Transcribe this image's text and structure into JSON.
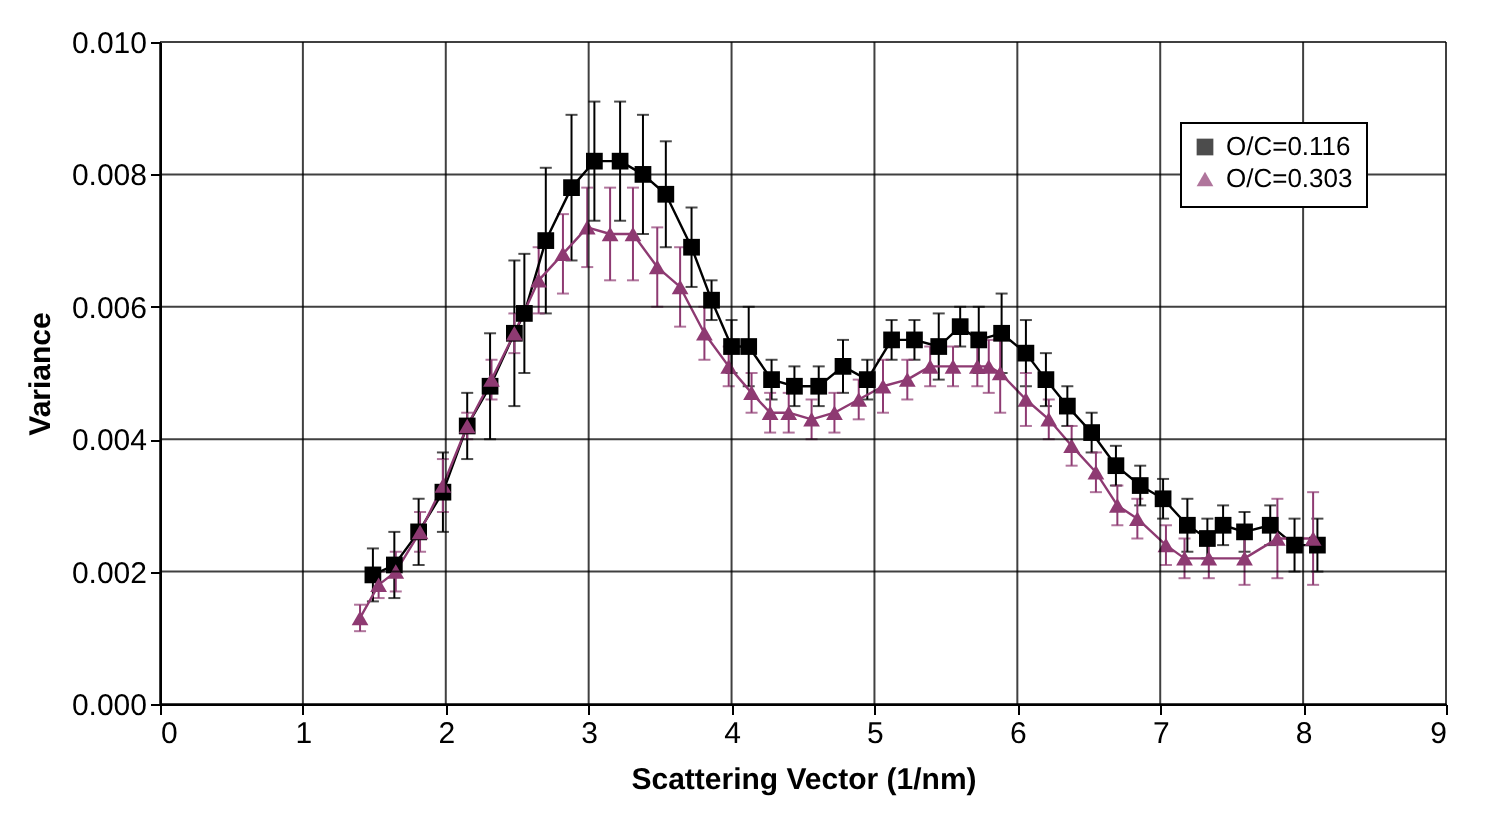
{
  "chart_data": {
    "type": "line",
    "xlabel": "Scattering Vector (1/nm)",
    "ylabel": "Variance",
    "xlim": [
      0,
      9
    ],
    "xticks": [
      0,
      1,
      2,
      3,
      4,
      5,
      6,
      7,
      8,
      9
    ],
    "ylim": [
      0,
      0.01
    ],
    "yticks": [
      {
        "value": 0,
        "label": "0.000"
      },
      {
        "value": 0.002,
        "label": "0.002"
      },
      {
        "value": 0.004,
        "label": "0.004"
      },
      {
        "value": 0.006,
        "label": "0.006"
      },
      {
        "value": 0.008,
        "label": "0.008"
      },
      {
        "value": 0.01,
        "label": "0.010"
      }
    ],
    "grid": true,
    "legend": "top right",
    "line_style": "solid",
    "series": [
      {
        "name": "O/C=0.116",
        "marker": "square",
        "color": "#000000",
        "x": [
          1.49,
          1.64,
          1.81,
          1.98,
          2.15,
          2.31,
          2.48,
          2.55,
          2.7,
          2.88,
          3.04,
          3.22,
          3.38,
          3.54,
          3.72,
          3.86,
          4.0,
          4.12,
          4.28,
          4.44,
          4.61,
          4.78,
          4.95,
          5.12,
          5.28,
          5.45,
          5.6,
          5.73,
          5.89,
          6.06,
          6.2,
          6.35,
          6.52,
          6.69,
          6.86,
          7.02,
          7.19,
          7.33,
          7.44,
          7.59,
          7.77,
          7.94,
          8.1
        ],
        "values": [
          0.00195,
          0.0021,
          0.0026,
          0.0032,
          0.0042,
          0.0048,
          0.0056,
          0.0059,
          0.007,
          0.0078,
          0.0082,
          0.0082,
          0.008,
          0.0077,
          0.0069,
          0.0061,
          0.0054,
          0.0054,
          0.0049,
          0.0048,
          0.0048,
          0.0051,
          0.0049,
          0.0055,
          0.0055,
          0.0054,
          0.0057,
          0.0055,
          0.0056,
          0.0053,
          0.0049,
          0.0045,
          0.0041,
          0.0036,
          0.0033,
          0.0031,
          0.0027,
          0.0025,
          0.0027,
          0.0026,
          0.0027,
          0.0024,
          0.0024
        ],
        "errors": [
          0.0004,
          0.0005,
          0.0005,
          0.0006,
          0.0005,
          0.0008,
          0.0011,
          0.0009,
          0.0011,
          0.0011,
          0.0009,
          0.0009,
          0.0009,
          0.0008,
          0.0006,
          0.0003,
          0.0004,
          0.0006,
          0.0003,
          0.0003,
          0.0003,
          0.0004,
          0.0003,
          0.0003,
          0.0003,
          0.0005,
          0.0003,
          0.0005,
          0.0006,
          0.0005,
          0.0004,
          0.0003,
          0.0003,
          0.0003,
          0.0003,
          0.0003,
          0.0004,
          0.0003,
          0.0003,
          0.0003,
          0.0003,
          0.0004,
          0.0004
        ]
      },
      {
        "name": "O/C=0.303",
        "marker": "triangle",
        "color": "#8e3a72",
        "x": [
          1.4,
          1.53,
          1.65,
          1.82,
          1.98,
          2.15,
          2.32,
          2.48,
          2.65,
          2.82,
          2.99,
          3.15,
          3.31,
          3.48,
          3.64,
          3.81,
          3.98,
          4.14,
          4.27,
          4.4,
          4.56,
          4.72,
          4.89,
          5.06,
          5.23,
          5.39,
          5.55,
          5.72,
          5.8,
          5.88,
          6.06,
          6.22,
          6.38,
          6.55,
          6.7,
          6.84,
          7.04,
          7.17,
          7.34,
          7.59,
          7.82,
          8.07
        ],
        "values": [
          0.0013,
          0.0018,
          0.002,
          0.0026,
          0.0033,
          0.0042,
          0.0049,
          0.0056,
          0.0064,
          0.0068,
          0.0072,
          0.0071,
          0.0071,
          0.0066,
          0.0063,
          0.0056,
          0.0051,
          0.0047,
          0.0044,
          0.0044,
          0.0043,
          0.0044,
          0.0046,
          0.0048,
          0.0049,
          0.0051,
          0.0051,
          0.0051,
          0.0051,
          0.005,
          0.0046,
          0.0043,
          0.0039,
          0.0035,
          0.003,
          0.0028,
          0.0024,
          0.0022,
          0.0022,
          0.0022,
          0.0025,
          0.0025
        ],
        "errors": [
          0.0002,
          0.0002,
          0.0003,
          0.0003,
          0.0004,
          0.0002,
          0.0003,
          0.0003,
          0.0005,
          0.0006,
          0.0006,
          0.0007,
          0.0007,
          0.0006,
          0.0006,
          0.0004,
          0.0003,
          0.0003,
          0.0003,
          0.0003,
          0.0003,
          0.0003,
          0.0003,
          0.0004,
          0.0003,
          0.0003,
          0.0003,
          0.0003,
          0.0004,
          0.0006,
          0.0004,
          0.0003,
          0.0003,
          0.0003,
          0.0003,
          0.0003,
          0.0003,
          0.0003,
          0.0003,
          0.0004,
          0.0006,
          0.0007
        ]
      }
    ]
  }
}
